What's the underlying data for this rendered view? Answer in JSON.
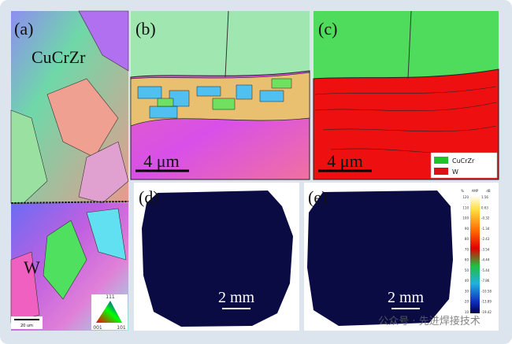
{
  "panels": {
    "a": {
      "label": "(a)",
      "top_material": "CuCrZr",
      "bottom_material": "W",
      "scale_bar": "20 um",
      "ipf": {
        "top": "111",
        "left": "001",
        "right": "101"
      }
    },
    "b": {
      "label": "(b)",
      "scale_bar": "4 μm"
    },
    "c": {
      "label": "(c)",
      "scale_bar": "4 μm",
      "legend": [
        {
          "name": "CuCrZr",
          "color": "#22c32a"
        },
        {
          "name": "W",
          "color": "#e01010"
        }
      ]
    },
    "d": {
      "label": "(d)",
      "scale_bar": "2 mm"
    },
    "e": {
      "label": "(e)",
      "scale_bar": "2 mm",
      "colorbar": {
        "title": "AMP",
        "left_unit": "%",
        "right_unit": "dB",
        "left_ticks": [
          120,
          110,
          100,
          90,
          80,
          70,
          60,
          50,
          40,
          30,
          20,
          10
        ],
        "right_ticks": [
          1.56,
          0.63,
          -0.32,
          -1.34,
          -2.43,
          -3.54,
          -4.44,
          -5.44,
          -7.86,
          -10.58,
          -13.89,
          -19.42
        ]
      }
    }
  },
  "watermark": "公众号 · 先进焊接技术"
}
